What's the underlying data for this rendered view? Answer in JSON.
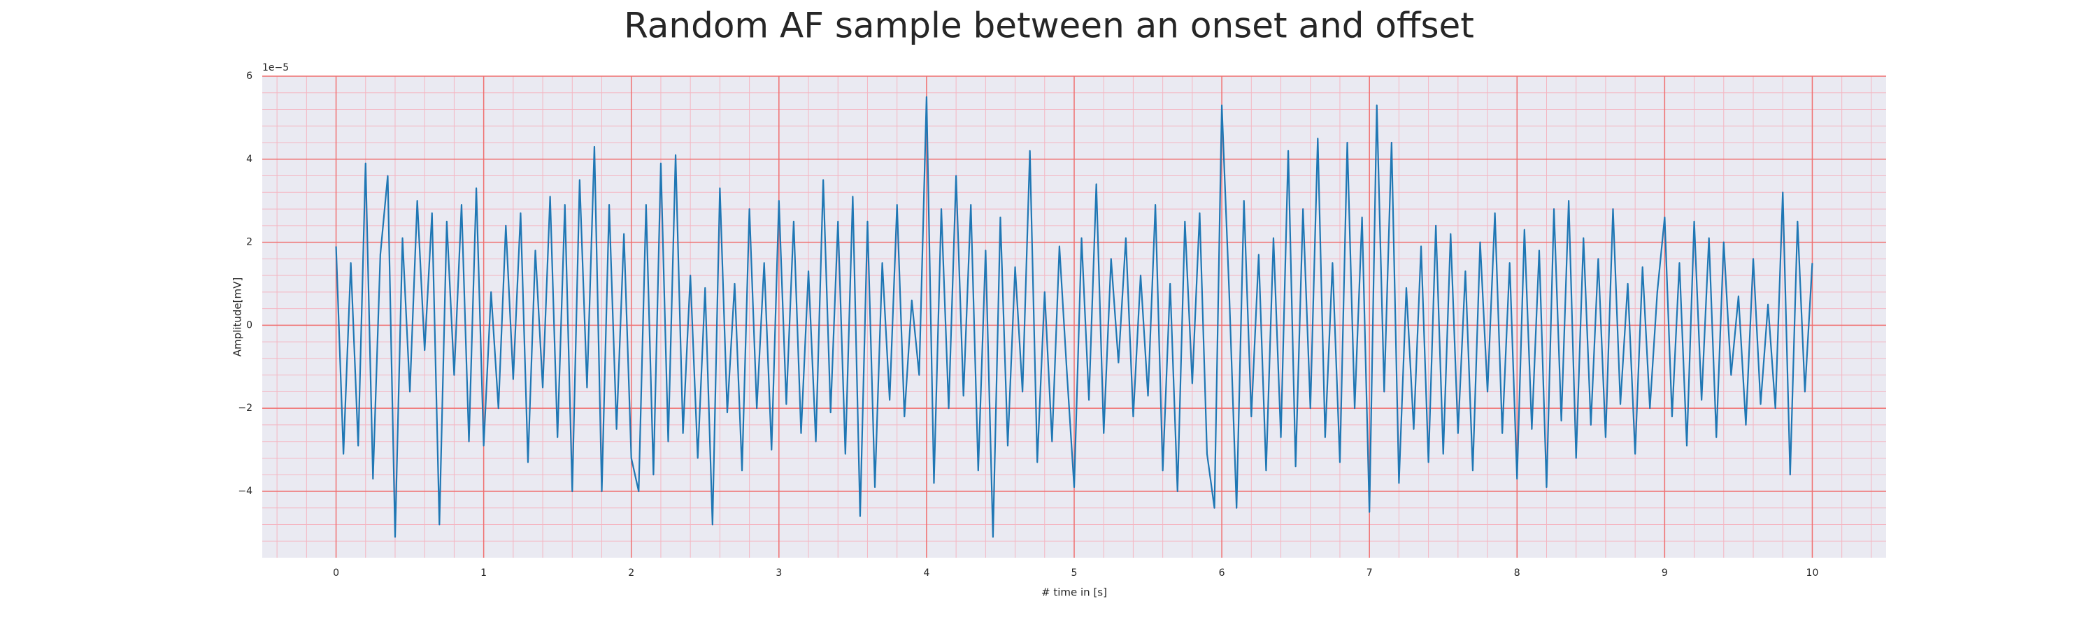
{
  "chart_data": {
    "type": "line",
    "title": "Random AF sample between an onset and offset",
    "xlabel": "# time in [s]",
    "ylabel": "Amplitude[mV]",
    "y_offset_label": "1e−5",
    "x": [
      0,
      0.05,
      0.1,
      0.15,
      0.2,
      0.25,
      0.3,
      0.35,
      0.4,
      0.45,
      0.5,
      0.55,
      0.6,
      0.65,
      0.7,
      0.75,
      0.8,
      0.85,
      0.9,
      0.95,
      1,
      1.05,
      1.1,
      1.15,
      1.2,
      1.25,
      1.3,
      1.35,
      1.4,
      1.45,
      1.5,
      1.55,
      1.6,
      1.65,
      1.7,
      1.75,
      1.8,
      1.85,
      1.9,
      1.95,
      2,
      2.05,
      2.1,
      2.15,
      2.2,
      2.25,
      2.3,
      2.35,
      2.4,
      2.45,
      2.5,
      2.55,
      2.6,
      2.65,
      2.7,
      2.75,
      2.8,
      2.85,
      2.9,
      2.95,
      3,
      3.05,
      3.1,
      3.15,
      3.2,
      3.25,
      3.3,
      3.35,
      3.4,
      3.45,
      3.5,
      3.55,
      3.6,
      3.65,
      3.7,
      3.75,
      3.8,
      3.85,
      3.9,
      3.95,
      4,
      4.05,
      4.1,
      4.15,
      4.2,
      4.25,
      4.3,
      4.35,
      4.4,
      4.45,
      4.5,
      4.55,
      4.6,
      4.65,
      4.7,
      4.75,
      4.8,
      4.85,
      4.9,
      4.95,
      5,
      5.05,
      5.1,
      5.15,
      5.2,
      5.25,
      5.3,
      5.35,
      5.4,
      5.45,
      5.5,
      5.55,
      5.6,
      5.65,
      5.7,
      5.75,
      5.8,
      5.85,
      5.9,
      5.95,
      6,
      6.05,
      6.1,
      6.15,
      6.2,
      6.25,
      6.3,
      6.35,
      6.4,
      6.45,
      6.5,
      6.55,
      6.6,
      6.65,
      6.7,
      6.75,
      6.8,
      6.85,
      6.9,
      6.95,
      7,
      7.05,
      7.1,
      7.15,
      7.2,
      7.25,
      7.3,
      7.35,
      7.4,
      7.45,
      7.5,
      7.55,
      7.6,
      7.65,
      7.7,
      7.75,
      7.8,
      7.85,
      7.9,
      7.95,
      8,
      8.05,
      8.1,
      8.15,
      8.2,
      8.25,
      8.3,
      8.35,
      8.4,
      8.45,
      8.5,
      8.55,
      8.6,
      8.65,
      8.7,
      8.75,
      8.8,
      8.85,
      8.9,
      8.95,
      9,
      9.05,
      9.1,
      9.15,
      9.2,
      9.25,
      9.3,
      9.35,
      9.4,
      9.45,
      9.5,
      9.55,
      9.6,
      9.65,
      9.7,
      9.75,
      9.8,
      9.85,
      9.9,
      9.95,
      10
    ],
    "series": [
      {
        "color": "#1f77b4",
        "values": [
          1.9,
          -3.1,
          1.5,
          -2.9,
          3.9,
          -3.7,
          1.7,
          3.6,
          -5.1,
          2.1,
          -1.6,
          3.0,
          -0.6,
          2.7,
          -4.8,
          2.5,
          -1.2,
          2.9,
          -2.8,
          3.3,
          -2.9,
          0.8,
          -2.0,
          2.4,
          -1.3,
          2.7,
          -3.3,
          1.8,
          -1.5,
          3.1,
          -2.7,
          2.9,
          -4.0,
          3.5,
          -1.5,
          4.3,
          -4.0,
          2.9,
          -2.5,
          2.2,
          -3.2,
          -4.0,
          2.9,
          -3.6,
          3.9,
          -2.8,
          4.1,
          -2.6,
          1.2,
          -3.2,
          0.9,
          -4.8,
          3.3,
          -2.1,
          1.0,
          -3.5,
          2.8,
          -2.0,
          1.5,
          -3.0,
          3.0,
          -1.9,
          2.5,
          -2.6,
          1.3,
          -2.8,
          3.5,
          -2.1,
          2.5,
          -3.1,
          3.1,
          -4.6,
          2.5,
          -3.9,
          1.5,
          -1.8,
          2.9,
          -2.2,
          0.6,
          -1.2,
          5.5,
          -3.8,
          2.8,
          -2.0,
          3.6,
          -1.7,
          2.9,
          -3.5,
          1.8,
          -5.1,
          2.6,
          -2.9,
          1.4,
          -1.6,
          4.2,
          -3.3,
          0.8,
          -2.8,
          1.9,
          -1.1,
          -3.9,
          2.1,
          -1.8,
          3.4,
          -2.6,
          1.6,
          -0.9,
          2.1,
          -2.2,
          1.2,
          -1.7,
          2.9,
          -3.5,
          1.0,
          -4.0,
          2.5,
          -1.4,
          2.7,
          -3.1,
          -4.4,
          5.3,
          0.8,
          -4.4,
          3.0,
          -2.2,
          1.7,
          -3.5,
          2.1,
          -2.7,
          4.2,
          -3.4,
          2.8,
          -2.0,
          4.5,
          -2.7,
          1.5,
          -3.3,
          4.4,
          -2.0,
          2.6,
          -4.5,
          5.3,
          -1.6,
          4.4,
          -3.8,
          0.9,
          -2.5,
          1.9,
          -3.3,
          2.4,
          -3.1,
          2.2,
          -2.6,
          1.3,
          -3.5,
          2.0,
          -1.6,
          2.7,
          -2.6,
          1.5,
          -3.7,
          2.3,
          -2.5,
          1.8,
          -3.9,
          2.8,
          -2.3,
          3.0,
          -3.2,
          2.1,
          -2.4,
          1.6,
          -2.7,
          2.8,
          -1.9,
          1.0,
          -3.1,
          1.4,
          -2.0,
          0.8,
          2.6,
          -2.2,
          1.5,
          -2.9,
          2.5,
          -1.8,
          2.1,
          -2.7,
          2.0,
          -1.2,
          0.7,
          -2.4,
          1.6,
          -1.9,
          0.5,
          -2.0,
          3.2,
          -3.6,
          2.5,
          -1.6,
          1.5
        ]
      }
    ],
    "xlim": [
      -0.5,
      10.5
    ],
    "ylim": [
      -5.6,
      6
    ],
    "xticks": [
      0,
      1,
      2,
      3,
      4,
      5,
      6,
      7,
      8,
      9,
      10
    ],
    "yticks": [
      {
        "value": -4,
        "label": "−4"
      },
      {
        "value": -2,
        "label": "−2"
      },
      0,
      2,
      4,
      6
    ],
    "grid": true,
    "minor_grid": true
  }
}
